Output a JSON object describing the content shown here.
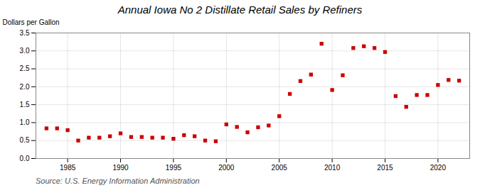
{
  "chart_data": {
    "type": "scatter",
    "title": "Annual Iowa No 2 Distillate Retail Sales by Refiners",
    "ylabel": "Dollars per Gallon",
    "source": "Source: U.S. Energy Information Administration",
    "x": [
      1983,
      1984,
      1985,
      1986,
      1987,
      1988,
      1989,
      1990,
      1991,
      1992,
      1993,
      1994,
      1995,
      1996,
      1997,
      1998,
      1999,
      2000,
      2001,
      2002,
      2003,
      2004,
      2005,
      2006,
      2007,
      2008,
      2009,
      2010,
      2011,
      2012,
      2013,
      2014,
      2015,
      2016,
      2017,
      2018,
      2019,
      2020,
      2021,
      2022
    ],
    "values": [
      0.84,
      0.84,
      0.79,
      0.5,
      0.58,
      0.58,
      0.62,
      0.7,
      0.6,
      0.6,
      0.58,
      0.58,
      0.55,
      0.65,
      0.62,
      0.5,
      0.48,
      0.95,
      0.88,
      0.73,
      0.87,
      0.92,
      1.18,
      1.8,
      2.16,
      2.34,
      3.2,
      1.91,
      2.32,
      3.08,
      3.13,
      3.08,
      2.97,
      1.74,
      1.44,
      1.77,
      1.77,
      2.05,
      2.19,
      2.17
    ],
    "color": "#cc0000",
    "marker": "square",
    "grid": true,
    "xlim": [
      1982,
      2023
    ],
    "xticks": [
      1985,
      1990,
      1995,
      2000,
      2005,
      2010,
      2015,
      2020
    ],
    "ylim": [
      0.0,
      3.5
    ],
    "yticks": [
      {
        "value": 0,
        "label": "0.0"
      },
      0.5,
      {
        "value": 1,
        "label": "1.0"
      },
      1.5,
      {
        "value": 2,
        "label": "2.0"
      },
      2.5,
      {
        "value": 3,
        "label": "3.0"
      },
      3.5
    ]
  }
}
